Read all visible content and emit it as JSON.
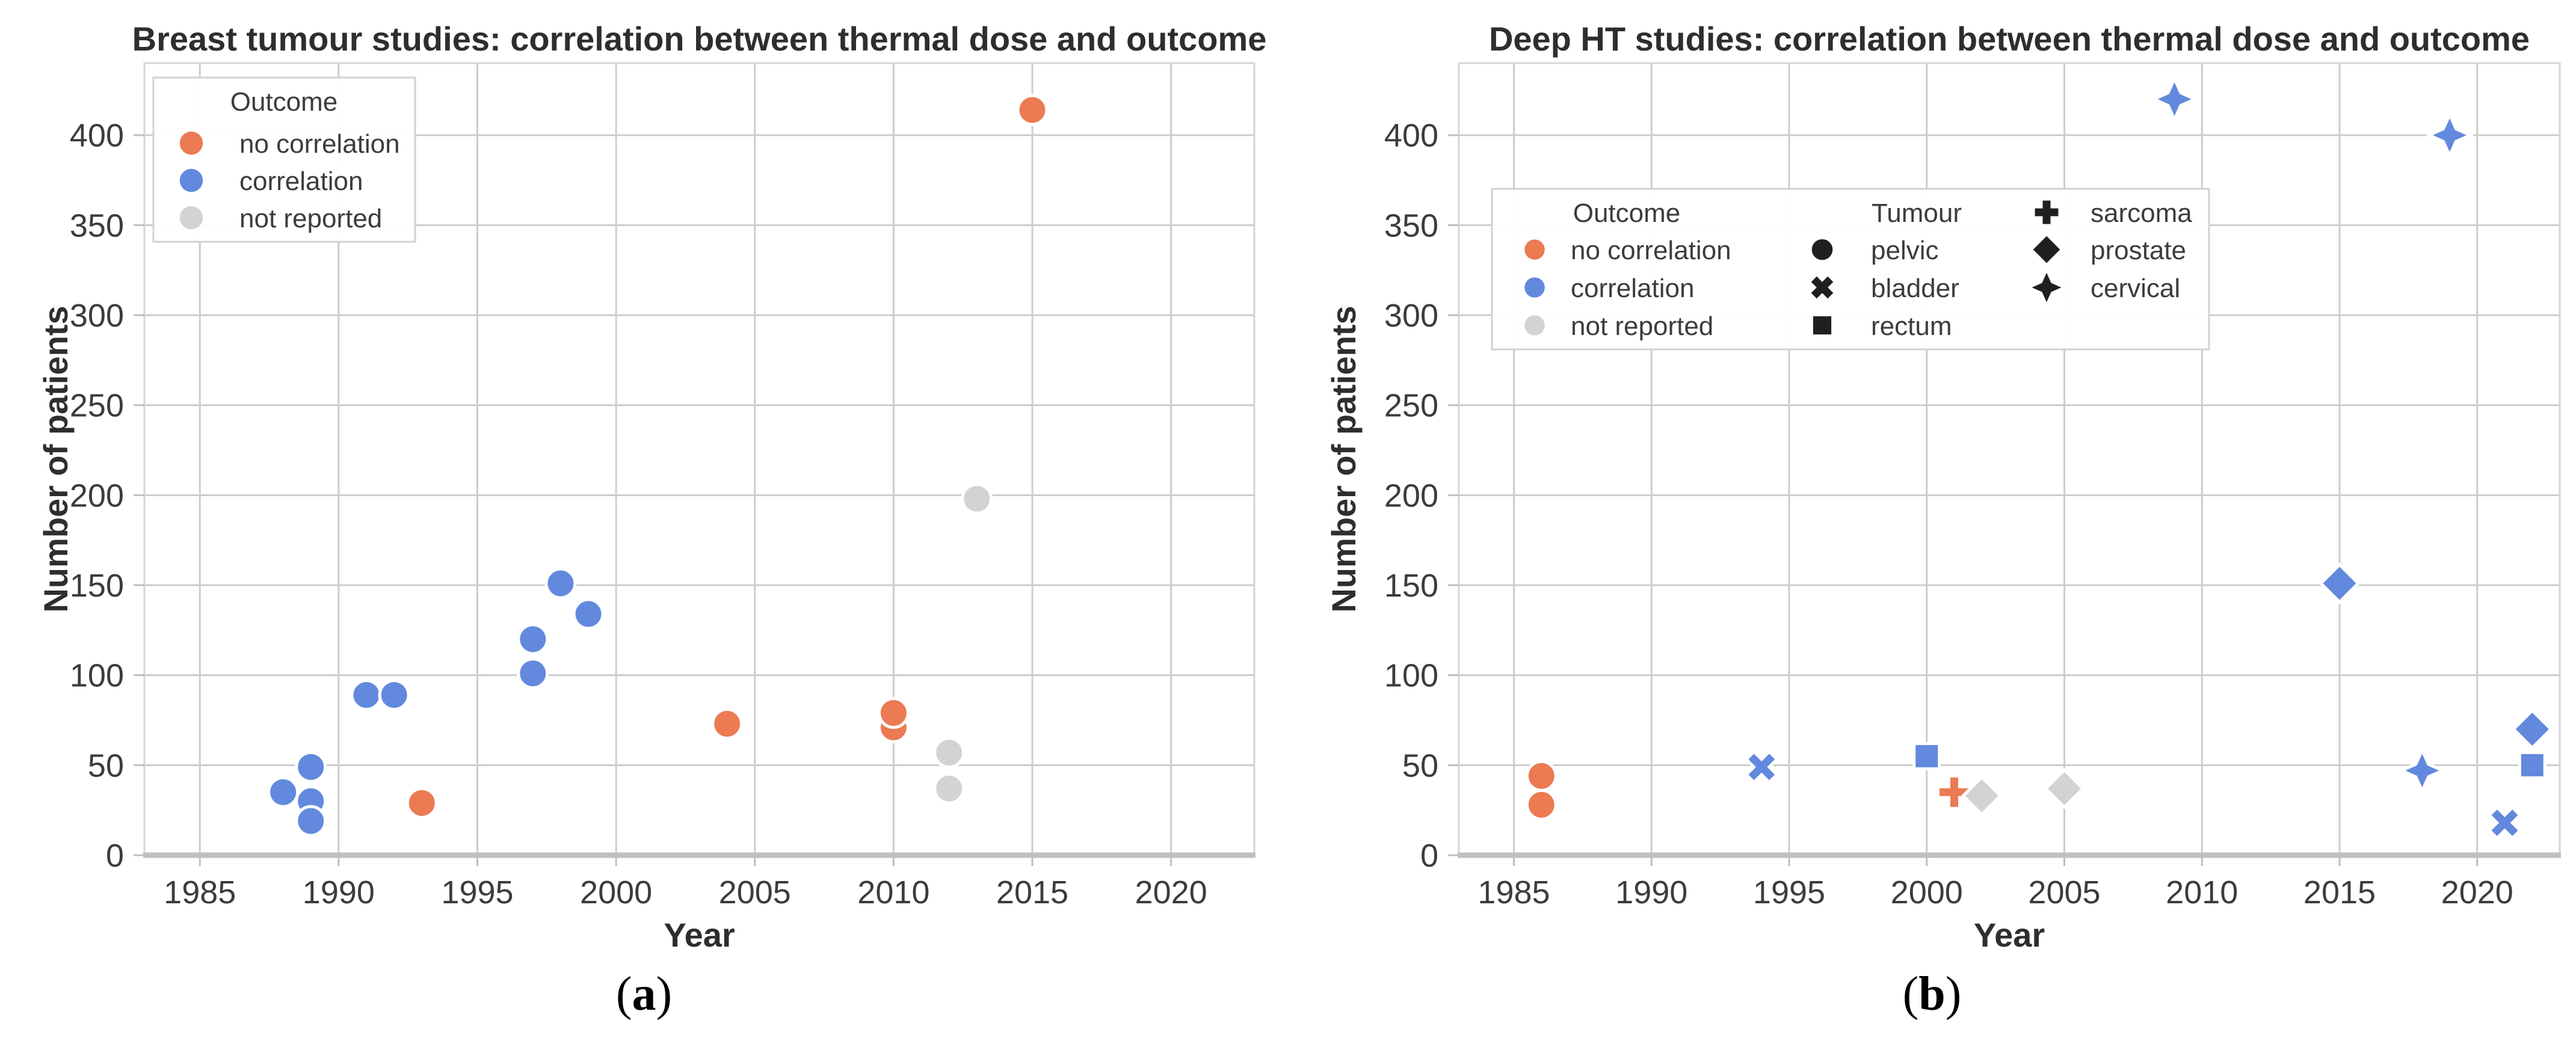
{
  "captions": [
    {
      "open": "(",
      "letter": "a",
      "close": ")"
    },
    {
      "open": "(",
      "letter": "b",
      "close": ")"
    }
  ],
  "colors": {
    "outcome": {
      "no correlation": "#ec7a52",
      "correlation": "#6289dd",
      "not reported": "#d3d3d3"
    },
    "legend_marker_black": "#1f1f1f",
    "grid": "#cccccc",
    "plot_border": "#d5d5d5",
    "axis_spine": "#bfbfbf",
    "legend_border": "#d2d2d2",
    "marker_edge": "#ffffff"
  },
  "tumour_markers": {
    "pelvic": "circle",
    "bladder": "x",
    "rectum": "square",
    "sarcoma": "plus",
    "prostate": "diamond",
    "cervical": "star4"
  },
  "chart_data": [
    {
      "type": "scatter",
      "title": "Breast tumour studies: correlation between thermal dose and outcome",
      "xlabel": "Year",
      "ylabel": "Number of patients",
      "xlim": [
        1983,
        2023
      ],
      "ylim": [
        0,
        440
      ],
      "xticks": [
        1985,
        1990,
        1995,
        2000,
        2005,
        2010,
        2015,
        2020
      ],
      "yticks": [
        0,
        50,
        100,
        150,
        200,
        250,
        300,
        350,
        400
      ],
      "grid": true,
      "legend": {
        "title": "Outcome",
        "position": "upper left",
        "items": [
          {
            "label": "no correlation",
            "outcome": "no correlation"
          },
          {
            "label": "correlation",
            "outcome": "correlation"
          },
          {
            "label": "not reported",
            "outcome": "not reported"
          }
        ]
      },
      "points": [
        {
          "x": 1988,
          "y": 35,
          "outcome": "correlation"
        },
        {
          "x": 1989,
          "y": 49,
          "outcome": "correlation"
        },
        {
          "x": 1989,
          "y": 30,
          "outcome": "correlation"
        },
        {
          "x": 1989,
          "y": 19,
          "outcome": "correlation"
        },
        {
          "x": 1991,
          "y": 89,
          "outcome": "correlation"
        },
        {
          "x": 1992,
          "y": 89,
          "outcome": "correlation"
        },
        {
          "x": 1997,
          "y": 120,
          "outcome": "correlation"
        },
        {
          "x": 1997,
          "y": 101,
          "outcome": "correlation"
        },
        {
          "x": 1998,
          "y": 151,
          "outcome": "correlation"
        },
        {
          "x": 1999,
          "y": 134,
          "outcome": "correlation"
        },
        {
          "x": 1993,
          "y": 29,
          "outcome": "no correlation"
        },
        {
          "x": 2004,
          "y": 73,
          "outcome": "no correlation"
        },
        {
          "x": 2010,
          "y": 71,
          "outcome": "no correlation"
        },
        {
          "x": 2010,
          "y": 79,
          "outcome": "no correlation"
        },
        {
          "x": 2015,
          "y": 414,
          "outcome": "no correlation"
        },
        {
          "x": 2012,
          "y": 57,
          "outcome": "not reported"
        },
        {
          "x": 2012,
          "y": 37,
          "outcome": "not reported"
        },
        {
          "x": 2013,
          "y": 198,
          "outcome": "not reported"
        }
      ]
    },
    {
      "type": "scatter",
      "title": "Deep HT studies: correlation between thermal dose and outcome",
      "xlabel": "Year",
      "ylabel": "Number of patients",
      "xlim": [
        1983,
        2023
      ],
      "ylim": [
        0,
        440
      ],
      "xticks": [
        1985,
        1990,
        1995,
        2000,
        2005,
        2010,
        2015,
        2020
      ],
      "yticks": [
        0,
        50,
        100,
        150,
        200,
        250,
        300,
        350,
        400
      ],
      "grid": true,
      "legend": {
        "outcome": {
          "title": "Outcome",
          "items": [
            {
              "label": "no correlation",
              "outcome": "no correlation"
            },
            {
              "label": "correlation",
              "outcome": "correlation"
            },
            {
              "label": "not reported",
              "outcome": "not reported"
            }
          ]
        },
        "tumour": {
          "title": "Tumour",
          "col1": [
            {
              "label": "pelvic",
              "marker": "circle"
            },
            {
              "label": "bladder",
              "marker": "x"
            },
            {
              "label": "rectum",
              "marker": "square"
            }
          ],
          "col2": [
            {
              "label": "sarcoma",
              "marker": "plus"
            },
            {
              "label": "prostate",
              "marker": "diamond"
            },
            {
              "label": "cervical",
              "marker": "star4"
            }
          ]
        }
      },
      "points": [
        {
          "x": 1986,
          "y": 44,
          "outcome": "no correlation",
          "tumour": "pelvic"
        },
        {
          "x": 1986,
          "y": 28,
          "outcome": "no correlation",
          "tumour": "pelvic"
        },
        {
          "x": 2001,
          "y": 35,
          "outcome": "no correlation",
          "tumour": "sarcoma"
        },
        {
          "x": 1994,
          "y": 49,
          "outcome": "correlation",
          "tumour": "bladder"
        },
        {
          "x": 2000,
          "y": 55,
          "outcome": "correlation",
          "tumour": "rectum"
        },
        {
          "x": 2009,
          "y": 420,
          "outcome": "correlation",
          "tumour": "cervical"
        },
        {
          "x": 2015,
          "y": 151,
          "outcome": "correlation",
          "tumour": "prostate"
        },
        {
          "x": 2018,
          "y": 47,
          "outcome": "correlation",
          "tumour": "cervical"
        },
        {
          "x": 2019,
          "y": 400,
          "outcome": "correlation",
          "tumour": "cervical"
        },
        {
          "x": 2021,
          "y": 18,
          "outcome": "correlation",
          "tumour": "bladder"
        },
        {
          "x": 2022,
          "y": 70,
          "outcome": "correlation",
          "tumour": "prostate"
        },
        {
          "x": 2022,
          "y": 50,
          "outcome": "correlation",
          "tumour": "rectum"
        },
        {
          "x": 2002,
          "y": 33,
          "outcome": "not reported",
          "tumour": "prostate"
        },
        {
          "x": 2005,
          "y": 37,
          "outcome": "not reported",
          "tumour": "prostate"
        }
      ]
    }
  ]
}
